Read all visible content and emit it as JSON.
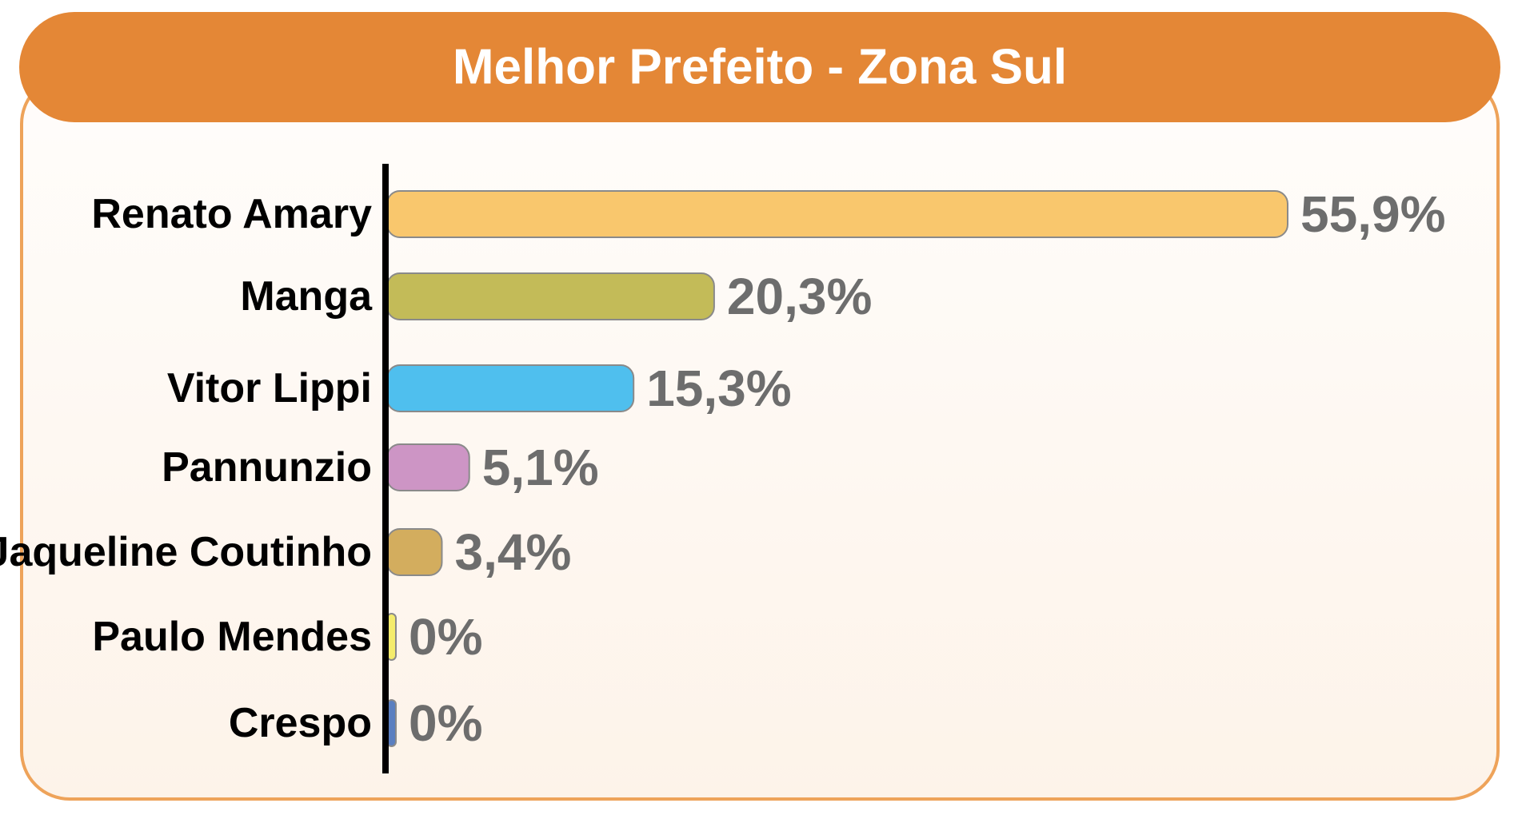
{
  "chart_data": {
    "type": "bar",
    "orientation": "horizontal",
    "title": "Melhor Prefeito - Zona Sul",
    "categories": [
      "Renato Amary",
      "Manga",
      "Vitor Lippi",
      "Pannunzio",
      "Jaqueline Coutinho",
      "Paulo Mendes",
      "Crespo"
    ],
    "values": [
      55.9,
      20.3,
      15.3,
      5.1,
      3.4,
      0,
      0
    ],
    "value_labels": [
      "55,9%",
      "20,3%",
      "15,3%",
      "5,1%",
      "3,4%",
      "0%",
      "0%"
    ],
    "bar_colors": [
      "#f9c76d",
      "#c3bb58",
      "#4fbfee",
      "#cd95c5",
      "#d3ad5e",
      "#f4ec6c",
      "#5a7fc0"
    ],
    "xlim": [
      0,
      55.9
    ],
    "grid": false,
    "legend": "none"
  },
  "colors": {
    "header": "#e48736",
    "panel_border": "#eea35a",
    "panel_fill": "#fefaf6",
    "axis": "#000000",
    "value_text": "#6d6d6d"
  }
}
